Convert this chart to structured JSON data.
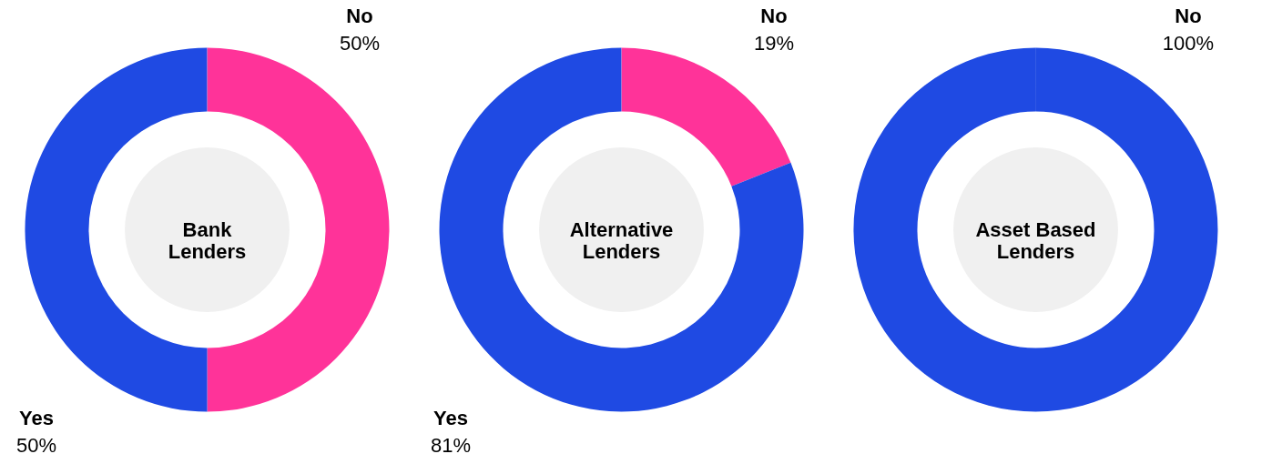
{
  "chart_data": [
    {
      "type": "donut",
      "title": "Bank\nLenders",
      "categories": [
        "No",
        "Yes"
      ],
      "values": [
        50,
        50
      ],
      "colors": [
        "#ff3399",
        "#1f4ae3"
      ],
      "value_labels": [
        "50%",
        "50%"
      ],
      "legend": false
    },
    {
      "type": "donut",
      "title": "Alternative\nLenders",
      "categories": [
        "No",
        "Yes"
      ],
      "values": [
        19,
        81
      ],
      "colors": [
        "#ff3399",
        "#1f4ae3"
      ],
      "value_labels": [
        "19%",
        "81%"
      ],
      "legend": false
    },
    {
      "type": "donut",
      "title": "Asset Based\nLenders",
      "categories": [
        "No"
      ],
      "values": [
        100
      ],
      "colors": [
        "#1f4ae3"
      ],
      "value_labels": [
        "100%"
      ],
      "legend": false
    }
  ]
}
